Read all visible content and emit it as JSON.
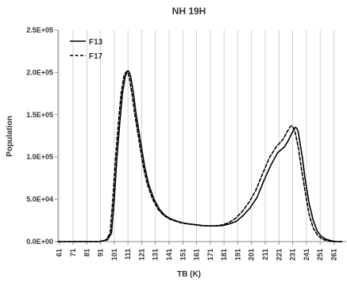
{
  "chart_data": {
    "type": "line",
    "title": "NH 19H",
    "xlabel": "TB (K)",
    "ylabel": "Population",
    "xlim": [
      60,
      270
    ],
    "ylim": [
      0,
      250000
    ],
    "x_ticks": [
      "61",
      "71",
      "81",
      "91",
      "101",
      "111",
      "121",
      "131",
      "141",
      "151",
      "161",
      "171",
      "181",
      "191",
      "201",
      "211",
      "221",
      "231",
      "241",
      "251",
      "261"
    ],
    "y_ticks": [
      "0.0E+00",
      "5.0E+04",
      "1.0E+05",
      "1.5E+05",
      "2.0E+05",
      "2.5E+05"
    ],
    "grid": "vertical",
    "legend_position": "top-left",
    "series": [
      {
        "name": "F13",
        "style": "solid",
        "color": "#000000",
        "x": [
          60,
          90,
          96,
          99,
          101,
          103,
          105,
          107,
          109,
          110,
          111,
          112,
          113,
          115,
          117,
          120,
          123,
          126,
          130,
          134,
          138,
          142,
          146,
          150,
          155,
          160,
          165,
          170,
          175,
          180,
          185,
          190,
          195,
          200,
          205,
          210,
          215,
          220,
          225,
          228,
          230,
          232,
          233,
          234,
          235,
          236,
          238,
          240,
          243,
          246,
          249,
          252,
          255,
          258,
          261,
          264,
          267
        ],
        "y": [
          0,
          0,
          2000,
          10000,
          50000,
          100000,
          140000,
          175000,
          195000,
          200000,
          202000,
          200000,
          195000,
          175000,
          150000,
          120000,
          90000,
          68000,
          50000,
          38000,
          31000,
          27000,
          24500,
          22500,
          21000,
          20000,
          19000,
          18500,
          18500,
          19000,
          21000,
          24000,
          31000,
          40000,
          52000,
          72000,
          90000,
          105000,
          112000,
          120000,
          127000,
          133000,
          135000,
          134000,
          130000,
          120000,
          100000,
          75000,
          45000,
          25000,
          12000,
          6000,
          3000,
          1500,
          500,
          0,
          0
        ]
      },
      {
        "name": "F17",
        "style": "dashed",
        "color": "#000000",
        "x": [
          60,
          90,
          95,
          98,
          100,
          102,
          104,
          106,
          108,
          109,
          110,
          111,
          112,
          114,
          116,
          119,
          122,
          125,
          129,
          133,
          137,
          141,
          145,
          149,
          154,
          159,
          164,
          169,
          174,
          179,
          184,
          189,
          194,
          199,
          204,
          209,
          214,
          219,
          224,
          227,
          229,
          230,
          231,
          232,
          233,
          235,
          237,
          240,
          243,
          246,
          249,
          252,
          255,
          258,
          261,
          264,
          267
        ],
        "y": [
          0,
          0,
          2000,
          10000,
          50000,
          100000,
          140000,
          175000,
          195000,
          199000,
          201000,
          199000,
          194000,
          174000,
          150000,
          120000,
          90000,
          68000,
          50000,
          38000,
          31000,
          27000,
          24500,
          22500,
          21000,
          20000,
          19000,
          18500,
          18500,
          19500,
          22000,
          27000,
          35000,
          46000,
          60000,
          80000,
          99000,
          112000,
          121000,
          130000,
          135000,
          137000,
          136000,
          133000,
          128000,
          112000,
          90000,
          60000,
          32000,
          16000,
          8000,
          3500,
          1500,
          500,
          0,
          0,
          0
        ]
      }
    ]
  }
}
